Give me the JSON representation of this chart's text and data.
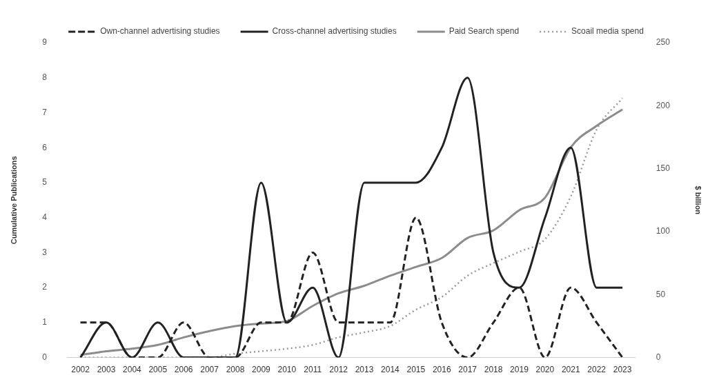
{
  "chart_data": {
    "type": "line",
    "ylabel": "Cumulative Publications",
    "y2label": "$ billion",
    "legend": "top",
    "grid": false,
    "marker": "none",
    "categories": [
      "2002",
      "2003",
      "2004",
      "2005",
      "2006",
      "2007",
      "2008",
      "2009",
      "2010",
      "2011",
      "2012",
      "2013",
      "2014",
      "2015",
      "2016",
      "2017",
      "2018",
      "2019",
      "2020",
      "2021",
      "2022",
      "2023"
    ],
    "ylim": [
      0,
      9
    ],
    "yticks": [
      0,
      1,
      2,
      3,
      4,
      5,
      6,
      7,
      8,
      9
    ],
    "y2lim": [
      0,
      250
    ],
    "y2ticks": [
      0,
      50,
      100,
      150,
      200,
      250
    ],
    "series": [
      {
        "name": "Own-channel advertising studies",
        "color": "#222222",
        "line_style": "dashed",
        "values": [
          1,
          1,
          0,
          0,
          1,
          0,
          0,
          1,
          1,
          3,
          1,
          1,
          1,
          4,
          1,
          0,
          1,
          2,
          0,
          2,
          1,
          0
        ]
      },
      {
        "name": "Cross-channel advertising studies",
        "color": "#222222",
        "line_style": "solid",
        "values": [
          0,
          1,
          0,
          1,
          0,
          0,
          0,
          5,
          1,
          2,
          0,
          5,
          5,
          5,
          6,
          8,
          3,
          2,
          4,
          6,
          2,
          2
        ]
      },
      {
        "name": "Paid Search spend",
        "color": "#8c8c8c",
        "line_style": "solid",
        "axis": "y2",
        "values": [
          2,
          5,
          7,
          10,
          16,
          21,
          25,
          27,
          29,
          41,
          51,
          57,
          65,
          72,
          79,
          95,
          101,
          117,
          127,
          167,
          184,
          197
        ]
      },
      {
        "name": "Scoail media spend",
        "color": "#9a9a9a",
        "line_style": "dotted",
        "axis": "y2",
        "values": [
          0,
          0,
          0,
          0,
          0,
          0,
          3,
          5,
          7,
          10,
          16,
          20,
          25,
          38,
          48,
          65,
          75,
          84,
          94,
          128,
          181,
          206
        ]
      }
    ]
  }
}
